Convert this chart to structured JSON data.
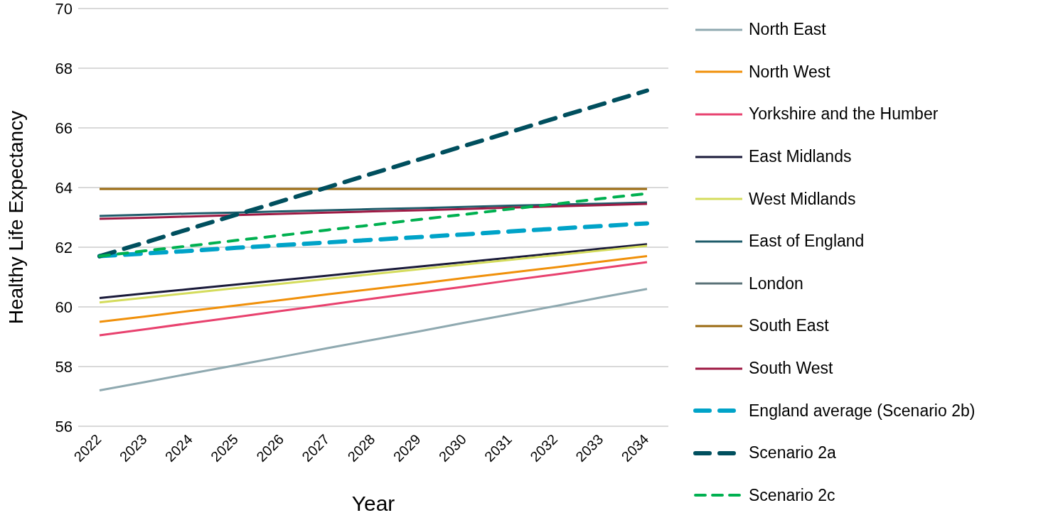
{
  "chart_data": {
    "type": "line",
    "xlabel": "Year",
    "ylabel": "Healthy Life Expectancy",
    "categories": [
      "2022",
      "2023",
      "2024",
      "2025",
      "2026",
      "2027",
      "2028",
      "2029",
      "2030",
      "2031",
      "2032",
      "2033",
      "2034"
    ],
    "ylim": [
      56,
      70
    ],
    "yticks": [
      56,
      58,
      60,
      62,
      64,
      66,
      68,
      70
    ],
    "grid": "y",
    "legend": "right",
    "line_style": "solid",
    "marker": "none",
    "series": [
      {
        "name": "North East",
        "color": "#8fa9b0",
        "values": [
          57.2,
          57.48,
          57.77,
          58.05,
          58.33,
          58.62,
          58.9,
          59.18,
          59.47,
          59.75,
          60.03,
          60.32,
          60.6
        ]
      },
      {
        "name": "North West",
        "color": "#f0900a",
        "values": [
          59.5,
          59.68,
          59.87,
          60.05,
          60.23,
          60.42,
          60.6,
          60.78,
          60.97,
          61.15,
          61.33,
          61.52,
          61.7
        ]
      },
      {
        "name": "Yorkshire and the Humber",
        "color": "#e8416e",
        "values": [
          59.05,
          59.25,
          59.46,
          59.66,
          59.87,
          60.07,
          60.28,
          60.48,
          60.68,
          60.89,
          61.09,
          61.3,
          61.5
        ]
      },
      {
        "name": "East Midlands",
        "color": "#1a1a3a",
        "values": [
          60.3,
          60.45,
          60.6,
          60.75,
          60.9,
          61.05,
          61.2,
          61.35,
          61.5,
          61.65,
          61.8,
          61.95,
          62.1
        ]
      },
      {
        "name": "West Midlands",
        "color": "#d4dc5c",
        "values": [
          60.15,
          60.31,
          60.47,
          60.63,
          60.78,
          60.94,
          61.1,
          61.26,
          61.42,
          61.58,
          61.73,
          61.89,
          62.05
        ]
      },
      {
        "name": "East of England",
        "color": "#1f5c6b",
        "values": [
          63.05,
          63.09,
          63.13,
          63.16,
          63.2,
          63.24,
          63.28,
          63.31,
          63.35,
          63.39,
          63.43,
          63.46,
          63.5
        ]
      },
      {
        "name": "London",
        "color": "#5a7278",
        "values": [
          null,
          null,
          null,
          null,
          null,
          null,
          null,
          null,
          null,
          null,
          null,
          null,
          null
        ]
      },
      {
        "name": "South East",
        "color": "#9a6a10",
        "values": [
          63.95,
          63.95,
          63.95,
          63.95,
          63.95,
          63.95,
          63.95,
          63.95,
          63.95,
          63.95,
          63.95,
          63.95,
          63.95
        ]
      },
      {
        "name": "South West",
        "color": "#9e1a44",
        "values": [
          62.95,
          62.99,
          63.03,
          63.08,
          63.12,
          63.16,
          63.2,
          63.24,
          63.28,
          63.33,
          63.37,
          63.41,
          63.45
        ]
      },
      {
        "name": "England average (Scenario 2b)",
        "color": "#00a3c8",
        "line_style": "dashed",
        "values": [
          61.7,
          61.79,
          61.88,
          61.98,
          62.07,
          62.16,
          62.25,
          62.34,
          62.43,
          62.53,
          62.62,
          62.71,
          62.8
        ]
      },
      {
        "name": "Scenario 2a",
        "color": "#004f5e",
        "line_style": "dashed",
        "values": [
          61.7,
          62.16,
          62.63,
          63.09,
          63.55,
          64.01,
          64.48,
          64.94,
          65.4,
          65.86,
          66.33,
          66.79,
          67.25
        ]
      },
      {
        "name": "Scenario 2c",
        "color": "#00b050",
        "line_style": "dotted",
        "values": [
          61.7,
          61.88,
          62.05,
          62.23,
          62.4,
          62.58,
          62.75,
          62.93,
          63.1,
          63.28,
          63.45,
          63.63,
          63.8
        ]
      }
    ]
  }
}
